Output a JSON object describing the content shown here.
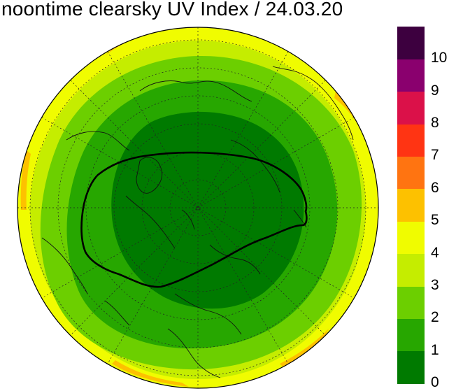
{
  "title": "noontime clearsky UV Index / 24.03.20",
  "colorbar": {
    "levels": [
      {
        "label": "0",
        "color": "#007a00"
      },
      {
        "label": "1",
        "color": "#27a700"
      },
      {
        "label": "2",
        "color": "#6ccf00"
      },
      {
        "label": "3",
        "color": "#c5ed00"
      },
      {
        "label": "4",
        "color": "#f0fc00"
      },
      {
        "label": "5",
        "color": "#fdc100"
      },
      {
        "label": "6",
        "color": "#ff7411"
      },
      {
        "label": "7",
        "color": "#ff3413"
      },
      {
        "label": "8",
        "color": "#db1149"
      },
      {
        "label": "9",
        "color": "#8a006e"
      },
      {
        "label": "10",
        "color": "#3d003f"
      }
    ]
  }
}
